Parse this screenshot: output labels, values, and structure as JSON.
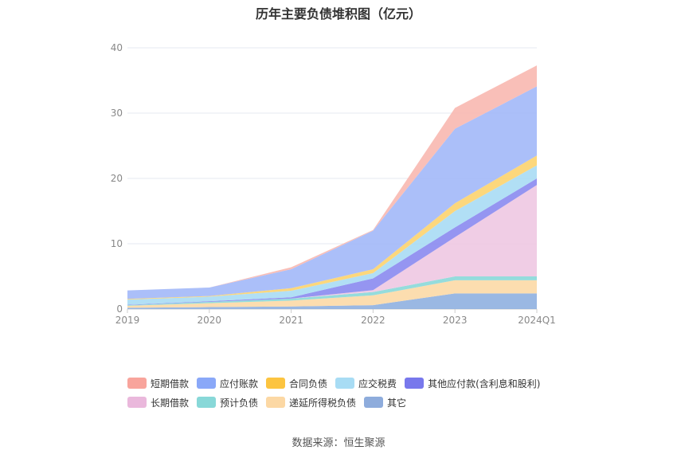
{
  "title": "历年主要负债堆积图（亿元）",
  "source": "数据来源：恒生聚源",
  "chart_data": {
    "type": "area",
    "stacked": true,
    "x": [
      "2019",
      "2020",
      "2021",
      "2022",
      "2023",
      "2024Q1"
    ],
    "ylim": [
      0,
      40
    ],
    "yticks": [
      0,
      10,
      20,
      30,
      40
    ],
    "grid": true,
    "legend_position": "bottom",
    "series": [
      {
        "name": "其它",
        "color": "#8fb0e0",
        "values": [
          0.2,
          0.3,
          0.4,
          0.6,
          2.4,
          2.4
        ]
      },
      {
        "name": "递延所得税负债",
        "color": "#fcd9a6",
        "values": [
          0.3,
          0.6,
          0.9,
          1.5,
          2.0,
          2.0
        ]
      },
      {
        "name": "预计负债",
        "color": "#8ad8d8",
        "values": [
          0.1,
          0.2,
          0.3,
          0.5,
          0.6,
          0.6
        ]
      },
      {
        "name": "长期借款",
        "color": "#eec8e2",
        "values": [
          0,
          0,
          0,
          0.3,
          6.0,
          14.0
        ]
      },
      {
        "name": "其他应付款(含利息和股利)",
        "color": "#8a8af0",
        "values": [
          0.05,
          0.1,
          0.2,
          1.8,
          1.5,
          1.0
        ]
      },
      {
        "name": "应交税费",
        "color": "#a8dcf4",
        "values": [
          0.8,
          0.7,
          1.0,
          0.8,
          2.5,
          2.0
        ]
      },
      {
        "name": "合同负债",
        "color": "#fcd36e",
        "values": [
          0.1,
          0.1,
          0.4,
          0.6,
          1.2,
          1.5
        ]
      },
      {
        "name": "应付账款",
        "color": "#a2b8f8",
        "values": [
          1.3,
          1.3,
          2.9,
          5.9,
          11.4,
          10.6
        ]
      },
      {
        "name": "短期借款",
        "color": "#f8b8b0",
        "values": [
          0,
          0,
          0.3,
          0.1,
          3.2,
          3.2
        ]
      }
    ]
  },
  "legend": {
    "row1": [
      {
        "name": "短期借款",
        "color": "#f8a49c"
      },
      {
        "name": "应付账款",
        "color": "#8aa8f8"
      },
      {
        "name": "合同负债",
        "color": "#fcc440"
      },
      {
        "name": "应交税费",
        "color": "#a8dcf4"
      },
      {
        "name": "其他应付款(含利息和股利)",
        "color": "#7878ec"
      }
    ],
    "row2": [
      {
        "name": "长期借款",
        "color": "#eab8dc"
      },
      {
        "name": "预计负债",
        "color": "#88d8d8"
      },
      {
        "name": "递延所得税负债",
        "color": "#fcd8a4"
      },
      {
        "name": "其它",
        "color": "#8eacdc"
      }
    ]
  }
}
